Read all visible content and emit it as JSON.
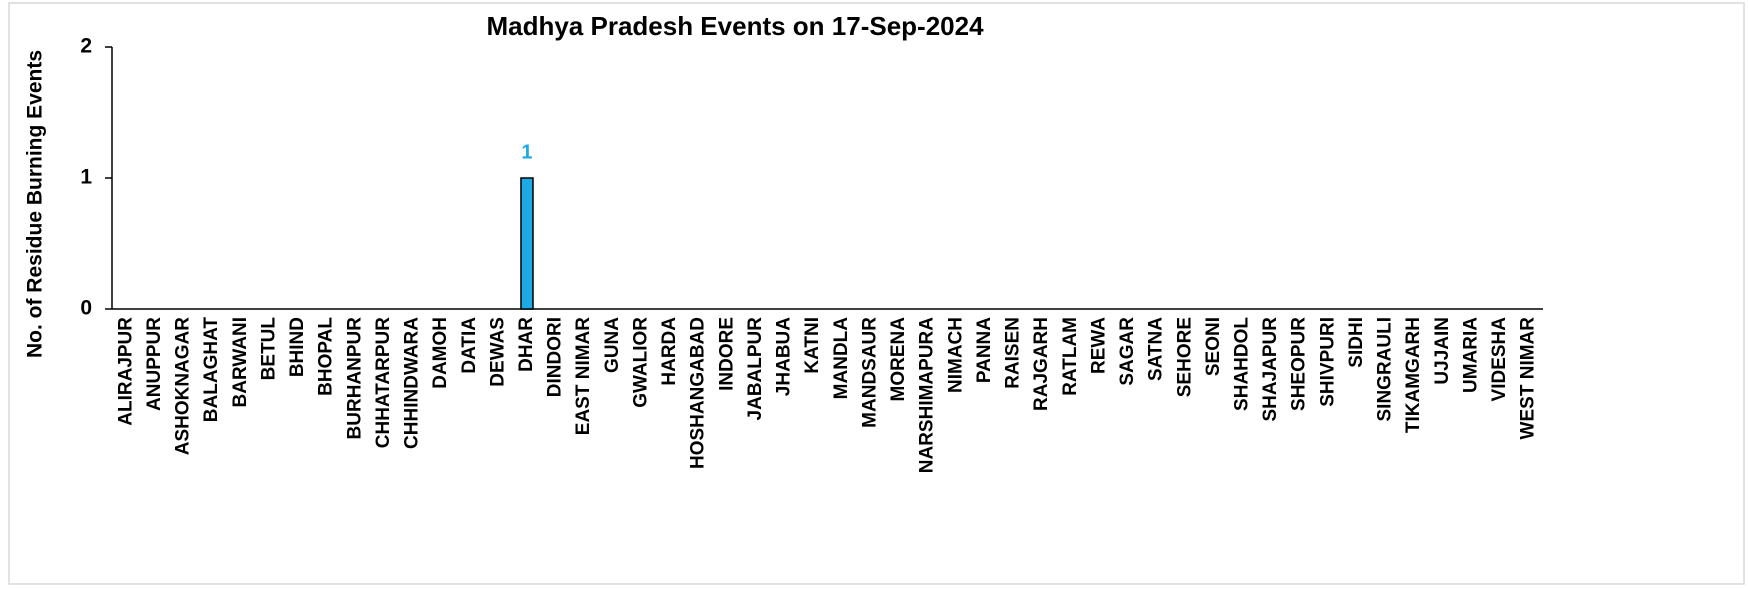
{
  "chart_data": {
    "type": "bar",
    "title": "Madhya Pradesh Events on 17-Sep-2024",
    "y_label": "No. of Residue Burning Events",
    "categories": [
      "ALIRAJPUR",
      "ANUPPUR",
      "ASHOKNAGAR",
      "BALAGHAT",
      "BARWANI",
      "BETUL",
      "BHIND",
      "BHOPAL",
      "BURHANPUR",
      "CHHATARPUR",
      "CHHINDWARA",
      "DAMOH",
      "DATIA",
      "DEWAS",
      "DHAR",
      "DINDORI",
      "EAST NIMAR",
      "GUNA",
      "GWALIOR",
      "HARDA",
      "HOSHANGABAD",
      "INDORE",
      "JABALPUR",
      "JHABUA",
      "KATNI",
      "MANDLA",
      "MANDSAUR",
      "MORENA",
      "NARSHIMAPURA",
      "NIMACH",
      "PANNA",
      "RAISEN",
      "RAJGARH",
      "RATLAM",
      "REWA",
      "SAGAR",
      "SATNA",
      "SEHORE",
      "SEONI",
      "SHAHDOL",
      "SHAJAPUR",
      "SHEOPUR",
      "SHIVPURI",
      "SIDHI",
      "SINGRAULI",
      "TIKAMGARH",
      "UJJAIN",
      "UMARIA",
      "VIDESHA",
      "WEST NIMAR"
    ],
    "values": [
      0,
      0,
      0,
      0,
      0,
      0,
      0,
      0,
      0,
      0,
      0,
      0,
      0,
      0,
      1,
      0,
      0,
      0,
      0,
      0,
      0,
      0,
      0,
      0,
      0,
      0,
      0,
      0,
      0,
      0,
      0,
      0,
      0,
      0,
      0,
      0,
      0,
      0,
      0,
      0,
      0,
      0,
      0,
      0,
      0,
      0,
      0,
      0,
      0,
      0
    ],
    "color": "#1ca9e6",
    "ylim": [
      0,
      2
    ],
    "yticks": [
      0,
      1,
      2
    ],
    "grid": false
  }
}
